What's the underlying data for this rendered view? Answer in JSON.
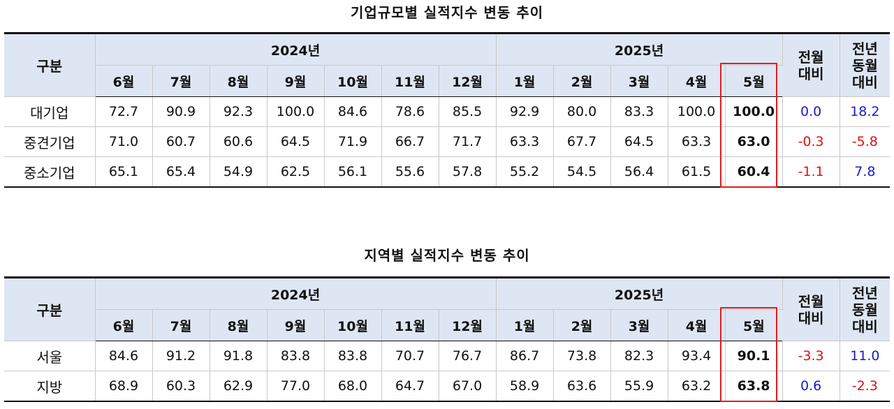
{
  "title1": "기업규모별 실적지수 변동 추이",
  "title2": "지역별 실적지수 변동 추이",
  "headers": {
    "category": "구분",
    "year2024": "2024년",
    "year2025": "2025년",
    "mom_1": "전월",
    "mom_2": "대비",
    "yoy_1": "전년",
    "yoy_2": "동월",
    "yoy_3": "대비",
    "months": [
      "6월",
      "7월",
      "8월",
      "9월",
      "10월",
      "11월",
      "12월",
      "1월",
      "2월",
      "3월",
      "4월",
      "5월"
    ]
  },
  "colors": {
    "highlight": "#e11d1d",
    "positive": "#1a1acc",
    "negative": "#e01010",
    "header_bg": "#dfe6f3"
  },
  "table1": {
    "rows": [
      {
        "label": "대기업",
        "values": [
          "72.7",
          "90.9",
          "92.3",
          "100.0",
          "84.6",
          "78.6",
          "85.5",
          "92.9",
          "80.0",
          "83.3",
          "100.0"
        ],
        "may": "100.0",
        "mom": "0.0",
        "yoy": "18.2"
      },
      {
        "label": "중견기업",
        "values": [
          "71.0",
          "60.7",
          "60.6",
          "64.5",
          "71.9",
          "66.7",
          "71.7",
          "63.3",
          "67.7",
          "64.5",
          "63.3"
        ],
        "may": "63.0",
        "mom": "-0.3",
        "yoy": "-5.8"
      },
      {
        "label": "중소기업",
        "values": [
          "65.1",
          "65.4",
          "54.9",
          "62.5",
          "56.1",
          "55.6",
          "57.8",
          "55.2",
          "54.5",
          "56.4",
          "61.5"
        ],
        "may": "60.4",
        "mom": "-1.1",
        "yoy": "7.8"
      }
    ]
  },
  "table2": {
    "rows": [
      {
        "label": "서울",
        "values": [
          "84.6",
          "91.2",
          "91.8",
          "83.8",
          "83.8",
          "70.7",
          "76.7",
          "86.7",
          "73.8",
          "82.3",
          "93.4"
        ],
        "may": "90.1",
        "mom": "-3.3",
        "yoy": "11.0"
      },
      {
        "label": "지방",
        "values": [
          "68.9",
          "60.3",
          "62.9",
          "77.0",
          "68.0",
          "64.7",
          "67.0",
          "58.9",
          "63.6",
          "55.9",
          "63.2"
        ],
        "may": "63.8",
        "mom": "0.6",
        "yoy": "-2.3"
      }
    ]
  }
}
